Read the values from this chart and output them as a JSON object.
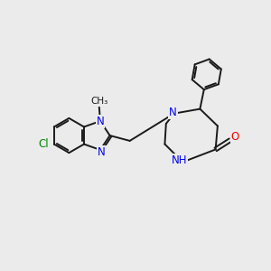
{
  "background_color": "#ebebeb",
  "bond_color": "#1a1a1a",
  "bond_width": 1.4,
  "atom_colors": {
    "N": "#0000ee",
    "O": "#ee0000",
    "Cl": "#008800",
    "C": "#1a1a1a"
  },
  "font_size_atom": 8.5,
  "font_size_methyl": 7.5
}
